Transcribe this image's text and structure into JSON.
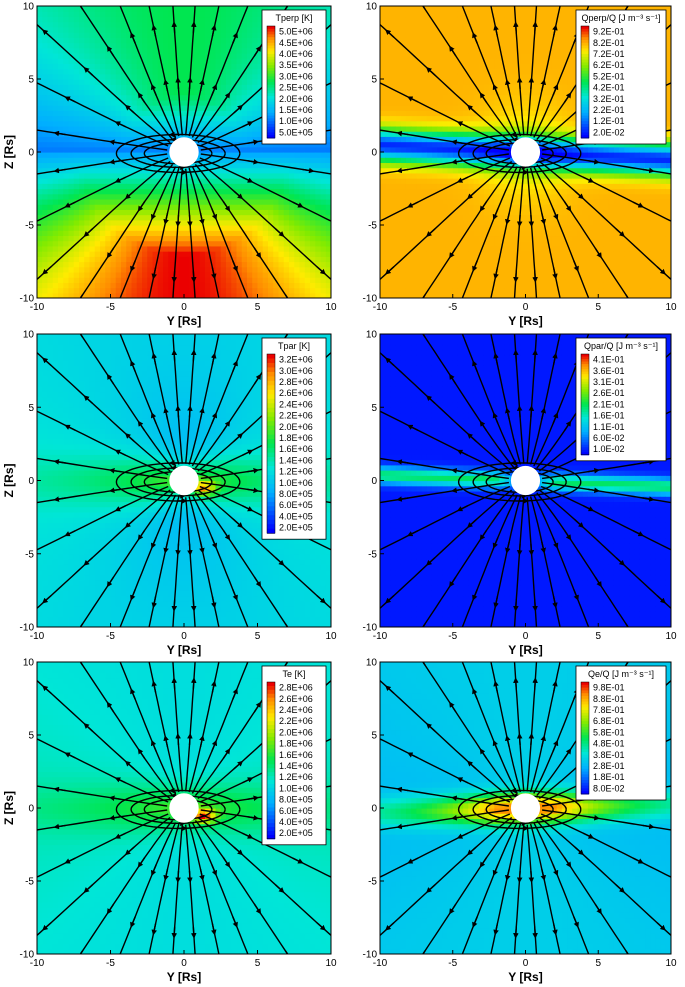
{
  "chart_data": [
    {
      "type": "heatmap",
      "field": "tperp",
      "title": "Tperp [K]",
      "xlabel": "Y [Rs]",
      "ylabel": "Z [Rs]",
      "xlim": [
        -10,
        10
      ],
      "ylim": [
        -10,
        10
      ],
      "xticks": [
        "-10",
        "-5",
        "0",
        "5",
        "10"
      ],
      "yticks": [
        "10",
        "5",
        "0",
        "-5",
        "-10"
      ],
      "legend_position": "top-right",
      "legend_levels": [
        "5.0E+06",
        "4.5E+06",
        "4.0E+06",
        "3.5E+06",
        "3.0E+06",
        "2.5E+06",
        "2.0E+06",
        "1.5E+06",
        "1.0E+06",
        "5.0E+05"
      ]
    },
    {
      "type": "heatmap",
      "field": "qperp",
      "title": "Qperp/Q [J m⁻³ s⁻¹]",
      "xlabel": "Y [Rs]",
      "ylabel": "",
      "xlim": [
        -10,
        10
      ],
      "ylim": [
        -10,
        10
      ],
      "xticks": [
        "-10",
        "-5",
        "0",
        "5",
        "10"
      ],
      "yticks": [
        "10",
        "5",
        "0",
        "-5",
        "-10"
      ],
      "legend_position": "top-right",
      "legend_levels": [
        "9.2E-01",
        "8.2E-01",
        "7.2E-01",
        "6.2E-01",
        "5.2E-01",
        "4.2E-01",
        "3.2E-01",
        "2.2E-01",
        "1.2E-01",
        "2.0E-02"
      ]
    },
    {
      "type": "heatmap",
      "field": "tpar",
      "title": "Tpar [K]",
      "xlabel": "Y [Rs]",
      "ylabel": "Z [Rs]",
      "xlim": [
        -10,
        10
      ],
      "ylim": [
        -10,
        10
      ],
      "xticks": [
        "-10",
        "-5",
        "0",
        "5",
        "10"
      ],
      "yticks": [
        "10",
        "5",
        "0",
        "-5",
        "-10"
      ],
      "legend_position": "top-right",
      "legend_levels": [
        "3.2E+06",
        "3.0E+06",
        "2.8E+06",
        "2.6E+06",
        "2.4E+06",
        "2.2E+06",
        "2.0E+06",
        "1.8E+06",
        "1.6E+06",
        "1.4E+06",
        "1.2E+06",
        "1.0E+06",
        "8.0E+05",
        "6.0E+05",
        "4.0E+05",
        "2.0E+05"
      ]
    },
    {
      "type": "heatmap",
      "field": "qpar",
      "title": "Qpar/Q [J m⁻³ s⁻¹]",
      "xlabel": "Y [Rs]",
      "ylabel": "",
      "xlim": [
        -10,
        10
      ],
      "ylim": [
        -10,
        10
      ],
      "xticks": [
        "-10",
        "-5",
        "0",
        "5",
        "10"
      ],
      "yticks": [
        "10",
        "5",
        "0",
        "-5",
        "-10"
      ],
      "legend_position": "top-right",
      "legend_levels": [
        "4.1E-01",
        "3.6E-01",
        "3.1E-01",
        "2.6E-01",
        "2.1E-01",
        "1.6E-01",
        "1.1E-01",
        "6.0E-02",
        "1.0E-02"
      ]
    },
    {
      "type": "heatmap",
      "field": "te",
      "title": "Te [K]",
      "xlabel": "Y [Rs]",
      "ylabel": "Z [Rs]",
      "xlim": [
        -10,
        10
      ],
      "ylim": [
        -10,
        10
      ],
      "xticks": [
        "-10",
        "-5",
        "0",
        "5",
        "10"
      ],
      "yticks": [
        "10",
        "5",
        "0",
        "-5",
        "-10"
      ],
      "legend_position": "top-right",
      "legend_levels": [
        "2.8E+06",
        "2.6E+06",
        "2.4E+06",
        "2.2E+06",
        "2.0E+06",
        "1.8E+06",
        "1.6E+06",
        "1.4E+06",
        "1.2E+06",
        "1.0E+06",
        "8.0E+05",
        "6.0E+05",
        "4.0E+05",
        "2.0E+05"
      ]
    },
    {
      "type": "heatmap",
      "field": "qe",
      "title": "Qe/Q [J m⁻³ s⁻¹]",
      "xlabel": "Y [Rs]",
      "ylabel": "",
      "xlim": [
        -10,
        10
      ],
      "ylim": [
        -10,
        10
      ],
      "xticks": [
        "-10",
        "-5",
        "0",
        "5",
        "10"
      ],
      "yticks": [
        "10",
        "5",
        "0",
        "-5",
        "-10"
      ],
      "legend_position": "top-right",
      "legend_levels": [
        "9.8E-01",
        "8.8E-01",
        "7.8E-01",
        "6.8E-01",
        "5.8E-01",
        "4.8E-01",
        "3.8E-01",
        "2.8E-01",
        "1.8E-01",
        "8.0E-02"
      ]
    }
  ]
}
